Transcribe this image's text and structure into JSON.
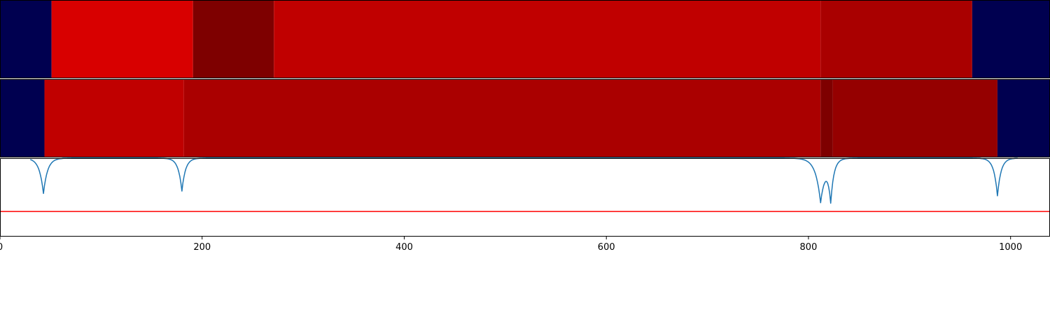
{
  "chart_data": [
    {
      "type": "heatmap",
      "name": "segmentation-track-1",
      "x_range": [
        0,
        1039
      ],
      "segments": [
        {
          "start": 0,
          "end": 51,
          "color": "#000050"
        },
        {
          "start": 51,
          "end": 191,
          "color": "#d80000"
        },
        {
          "start": 191,
          "end": 271,
          "color": "#7e0000"
        },
        {
          "start": 271,
          "end": 812,
          "color": "#c00000"
        },
        {
          "start": 812,
          "end": 962,
          "color": "#a90000"
        },
        {
          "start": 962,
          "end": 1039,
          "color": "#000050"
        }
      ]
    },
    {
      "type": "heatmap",
      "name": "segmentation-track-2",
      "x_range": [
        0,
        1039
      ],
      "segments": [
        {
          "start": 0,
          "end": 44,
          "color": "#000050"
        },
        {
          "start": 44,
          "end": 182,
          "color": "#c00000"
        },
        {
          "start": 182,
          "end": 812,
          "color": "#aa0000"
        },
        {
          "start": 812,
          "end": 824,
          "color": "#7e0000"
        },
        {
          "start": 824,
          "end": 987,
          "color": "#950000"
        },
        {
          "start": 987,
          "end": 1039,
          "color": "#000050"
        }
      ]
    },
    {
      "type": "line",
      "name": "boundary-signal",
      "xlim": [
        0,
        1039
      ],
      "ylim": [
        0,
        1
      ],
      "x_ticks": [
        0,
        200,
        400,
        600,
        800,
        1000
      ],
      "x_tick_labels": [
        "0",
        "200",
        "400",
        "600",
        "800",
        "1000"
      ],
      "threshold": 0.32,
      "threshold_color": "#ff0000",
      "line_color": "#1f77b4",
      "x_domain": [
        30,
        1007
      ],
      "baseline": 1.0,
      "dips": [
        {
          "center": 43,
          "depth": 0.45,
          "width": 4
        },
        {
          "center": 180,
          "depth": 0.42,
          "width": 3.5
        },
        {
          "center": 812,
          "depth": 0.55,
          "width": 5
        },
        {
          "center": 822,
          "depth": 0.5,
          "width": 3
        },
        {
          "center": 987,
          "depth": 0.48,
          "width": 3.5
        }
      ]
    }
  ]
}
